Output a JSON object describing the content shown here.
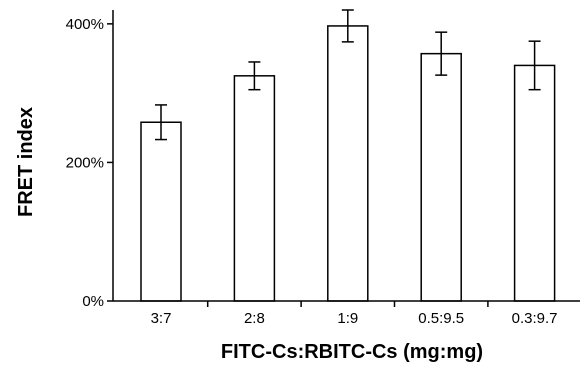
{
  "chart_data": {
    "type": "bar",
    "categories": [
      "3:7",
      "2:8",
      "1:9",
      "0.5:9.5",
      "0.3:9.7"
    ],
    "values": [
      258,
      325,
      397,
      357,
      340
    ],
    "errors": [
      25,
      20,
      23,
      31,
      35
    ],
    "yticks": [
      0,
      200,
      400
    ],
    "ytick_labels": [
      "0%",
      "200%",
      "400%"
    ],
    "ylim": [
      0,
      420
    ],
    "xlabel": "FITC-Cs:RBITC-Cs (mg:mg)",
    "ylabel": "FRET index",
    "grid": false,
    "bar_fill": "#ffffff",
    "bar_stroke": "#000000"
  }
}
